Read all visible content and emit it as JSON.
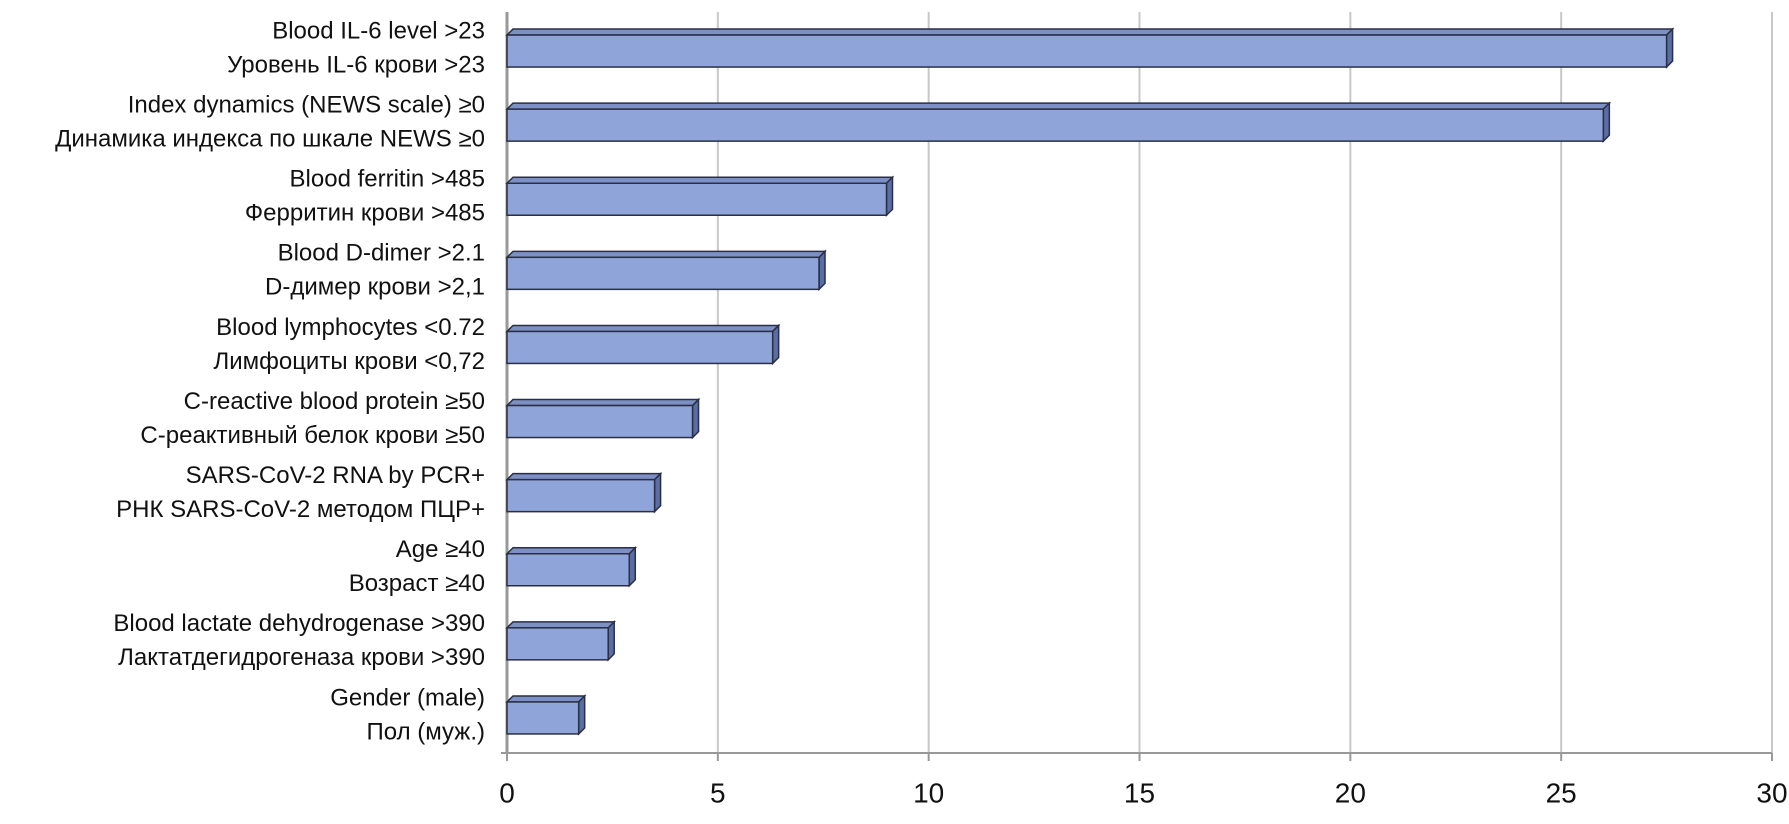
{
  "chart_data": {
    "type": "bar3d-horizontal",
    "categories": [
      [
        "Blood IL-6 level >23",
        "Уровень IL-6 крови >23"
      ],
      [
        "Index dynamics (NEWS scale) ≥0",
        "Динамика индекса по шкале NEWS ≥0"
      ],
      [
        "Blood ferritin >485",
        "Ферритин крови >485"
      ],
      [
        "Blood D-dimer >2.1",
        "D-димер крови >2,1"
      ],
      [
        "Blood lymphocytes <0.72",
        "Лимфоциты крови <0,72"
      ],
      [
        "C-reactive blood protein ≥50",
        "С-реактивный белок крови ≥50"
      ],
      [
        "SARS-CoV-2 RNA by PCR+",
        "РНК SARS-CoV-2 методом ПЦР+"
      ],
      [
        "Age ≥40",
        "Возраст ≥40"
      ],
      [
        "Blood lactate dehydrogenase >390",
        "Лактатдегидрогеназа крови >390"
      ],
      [
        "Gender (male)",
        "Пол (муж.)"
      ]
    ],
    "values": [
      27.5,
      26.0,
      9.0,
      7.4,
      6.3,
      4.4,
      3.5,
      2.9,
      2.4,
      1.7
    ],
    "color": "#8fa4d8",
    "xlim": [
      0,
      30
    ],
    "xticks": [
      0,
      5,
      10,
      15,
      20,
      25,
      30
    ],
    "grid": true
  }
}
